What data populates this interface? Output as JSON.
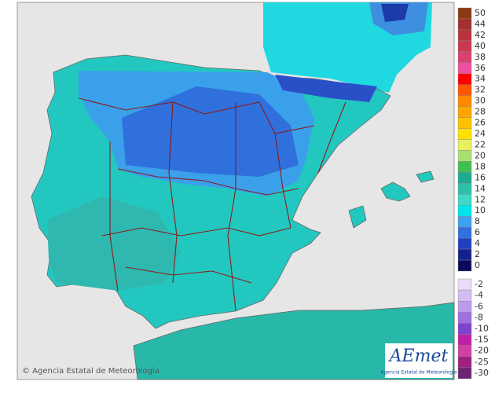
{
  "credit": "© Agencia Estatal de Meteorología",
  "logo": {
    "name": "AEmet",
    "subtitle": "Agencia Estatal de Meteorología"
  },
  "legend": {
    "upper": [
      {
        "value": 50,
        "color": "#8b3a12"
      },
      {
        "value": 44,
        "color": "#a3302c"
      },
      {
        "value": 42,
        "color": "#b8333c"
      },
      {
        "value": 40,
        "color": "#c93a52"
      },
      {
        "value": 38,
        "color": "#d9426e"
      },
      {
        "value": 36,
        "color": "#ee4fa0"
      },
      {
        "value": 34,
        "color": "#ff0000"
      },
      {
        "value": 32,
        "color": "#ff5500"
      },
      {
        "value": 30,
        "color": "#ff8800"
      },
      {
        "value": 28,
        "color": "#ffa500"
      },
      {
        "value": 26,
        "color": "#ffc200"
      },
      {
        "value": 24,
        "color": "#ffe000"
      },
      {
        "value": 22,
        "color": "#e8f060"
      },
      {
        "value": 20,
        "color": "#a8e070"
      },
      {
        "value": 18,
        "color": "#40c050"
      },
      {
        "value": 16,
        "color": "#20a890"
      },
      {
        "value": 14,
        "color": "#2ec0a8"
      },
      {
        "value": 12,
        "color": "#40d8c8"
      },
      {
        "value": 10,
        "color": "#00e4ec"
      },
      {
        "value": 8,
        "color": "#3fa0f0"
      },
      {
        "value": 6,
        "color": "#3070e0"
      },
      {
        "value": 4,
        "color": "#2040c0"
      },
      {
        "value": 2,
        "color": "#14208f"
      },
      {
        "value": 0,
        "color": "#0a0a5a"
      }
    ],
    "lower": [
      {
        "value": -2,
        "color": "#eadcf8"
      },
      {
        "value": -4,
        "color": "#d4bcf0"
      },
      {
        "value": -6,
        "color": "#bc9cea"
      },
      {
        "value": -8,
        "color": "#a070e0"
      },
      {
        "value": -10,
        "color": "#8040d0"
      },
      {
        "value": -15,
        "color": "#c020a8"
      },
      {
        "value": -20,
        "color": "#d040a0"
      },
      {
        "value": -25,
        "color": "#a02080"
      },
      {
        "value": -30,
        "color": "#6c2470"
      }
    ]
  }
}
